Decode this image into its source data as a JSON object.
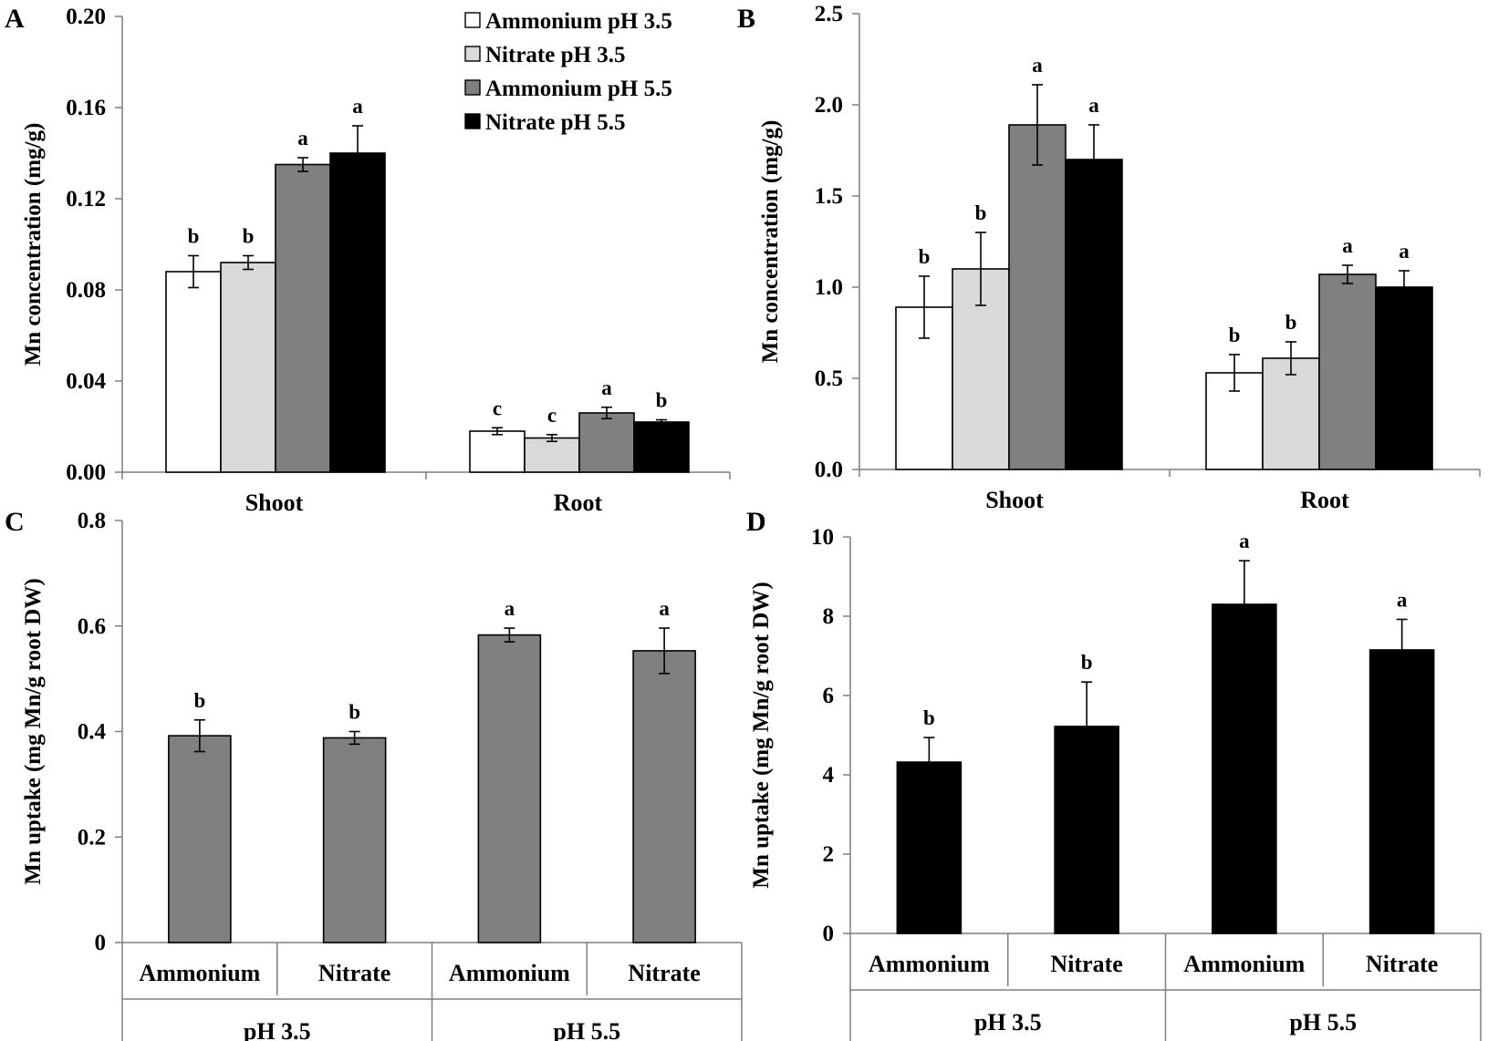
{
  "chart_data": [
    {
      "panel": "A",
      "type": "bar",
      "categories": [
        "Shoot",
        "Root"
      ],
      "ylabel": "Mn concentration  (mg/g)",
      "ylim": [
        0,
        0.2
      ],
      "yticks": [
        "0.00",
        "0.04",
        "0.08",
        "0.12",
        "0.16",
        "0.20"
      ],
      "series": [
        {
          "name": "Ammonium pH 3.5",
          "color": "#ffffff",
          "values": [
            0.088,
            0.018
          ],
          "errors": [
            0.007,
            0.0015
          ],
          "letters": [
            "b",
            "c"
          ]
        },
        {
          "name": "Nitrate pH 3.5",
          "color": "#d9d9d9",
          "values": [
            0.092,
            0.015
          ],
          "errors": [
            0.003,
            0.0015
          ],
          "letters": [
            "b",
            "c"
          ]
        },
        {
          "name": "Ammonium pH 5.5",
          "color": "#808080",
          "values": [
            0.135,
            0.026
          ],
          "errors": [
            0.003,
            0.0025
          ],
          "letters": [
            "a",
            "a"
          ]
        },
        {
          "name": "Nitrate pH 5.5",
          "color": "#000000",
          "values": [
            0.14,
            0.022
          ],
          "errors": [
            0.012,
            0.001
          ],
          "letters": [
            "a",
            "b"
          ]
        }
      ],
      "legend": "top-center"
    },
    {
      "panel": "B",
      "type": "bar",
      "categories": [
        "Shoot",
        "Root"
      ],
      "ylabel": "Mn concentration  (mg/g)",
      "ylim": [
        0,
        2.5
      ],
      "yticks": [
        "0.0",
        "0.5",
        "1.0",
        "1.5",
        "2.0",
        "2.5"
      ],
      "series": [
        {
          "name": "Ammonium pH 3.5",
          "color": "#ffffff",
          "values": [
            0.89,
            0.53
          ],
          "errors": [
            0.17,
            0.1
          ],
          "letters": [
            "b",
            "b"
          ]
        },
        {
          "name": "Nitrate pH 3.5",
          "color": "#d9d9d9",
          "values": [
            1.1,
            0.61
          ],
          "errors": [
            0.2,
            0.09
          ],
          "letters": [
            "b",
            "b"
          ]
        },
        {
          "name": "Ammonium pH 5.5",
          "color": "#808080",
          "values": [
            1.89,
            1.07
          ],
          "errors": [
            0.22,
            0.05
          ],
          "letters": [
            "a",
            "a"
          ]
        },
        {
          "name": "Nitrate pH 5.5",
          "color": "#000000",
          "values": [
            1.7,
            1.0
          ],
          "errors": [
            0.19,
            0.09
          ],
          "letters": [
            "a",
            "a"
          ]
        }
      ]
    },
    {
      "panel": "C",
      "type": "bar",
      "categories": [
        "Ammonium",
        "Nitrate",
        "Ammonium",
        "Nitrate"
      ],
      "groups": [
        "pH 3.5",
        "pH 5.5"
      ],
      "ylabel": "Mn uptake (mg Mn/g root DW)",
      "ylim": [
        0,
        0.8
      ],
      "yticks": [
        "0",
        "0.2",
        "0.4",
        "0.6",
        "0.8"
      ],
      "color": "#808080",
      "values": [
        0.392,
        0.388,
        0.583,
        0.553
      ],
      "errors": [
        0.03,
        0.012,
        0.013,
        0.043
      ],
      "letters": [
        "b",
        "b",
        "a",
        "a"
      ]
    },
    {
      "panel": "D",
      "type": "bar",
      "categories": [
        "Ammonium",
        "Nitrate",
        "Ammonium",
        "Nitrate"
      ],
      "groups": [
        "pH 3.5",
        "pH 5.5"
      ],
      "ylabel": "Mn uptake (mg Mn/g root DW)",
      "ylim": [
        0,
        10
      ],
      "yticks": [
        "0",
        "2",
        "4",
        "6",
        "8",
        "10"
      ],
      "color": "#000000",
      "values": [
        4.32,
        5.22,
        8.3,
        7.15
      ],
      "errors": [
        0.62,
        1.12,
        1.1,
        0.77
      ],
      "letters": [
        "b",
        "b",
        "a",
        "a"
      ]
    }
  ]
}
